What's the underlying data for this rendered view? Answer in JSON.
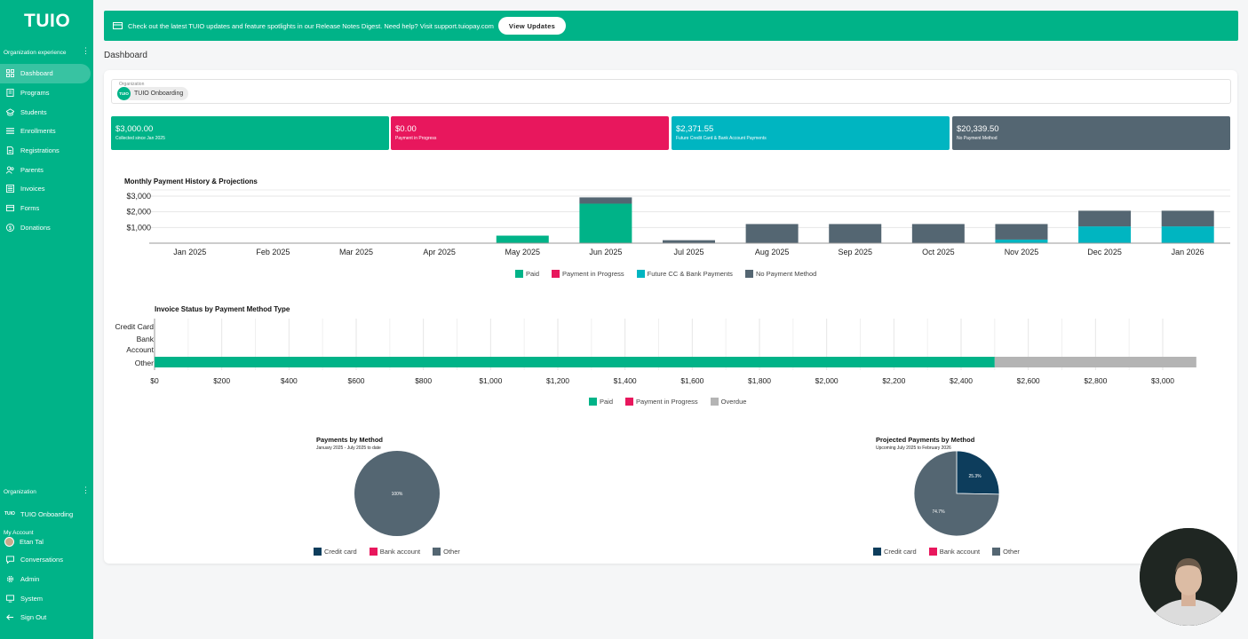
{
  "app": {
    "logo": "TUIO"
  },
  "sidebar": {
    "org_experience_label": "Organization experience",
    "items": [
      {
        "label": "Dashboard",
        "icon": "dashboard-icon",
        "active": true
      },
      {
        "label": "Programs",
        "icon": "book-icon"
      },
      {
        "label": "Students",
        "icon": "graduation-cap-icon"
      },
      {
        "label": "Enrollments",
        "icon": "list-icon"
      },
      {
        "label": "Registrations",
        "icon": "document-icon"
      },
      {
        "label": "Parents",
        "icon": "people-icon"
      },
      {
        "label": "Invoices",
        "icon": "invoice-icon"
      },
      {
        "label": "Forms",
        "icon": "form-icon"
      },
      {
        "label": "Donations",
        "icon": "donation-icon"
      }
    ],
    "organization_label": "Organization",
    "organization_mini_logo": "TUIO",
    "organization_name": "TUIO Onboarding",
    "my_account_label": "My Account",
    "user_name": "Etan Tal",
    "account_items": [
      {
        "label": "Conversations",
        "icon": "chat-icon"
      },
      {
        "label": "Admin",
        "icon": "gear-icon"
      },
      {
        "label": "System",
        "icon": "monitor-icon"
      },
      {
        "label": "Sign Out",
        "icon": "sign-out-icon"
      }
    ]
  },
  "banner": {
    "text": "Check out the latest TUIO updates and feature spotlights in our Release Notes Digest. Need help? Visit support.tuiopay.com",
    "button_label": "View Updates"
  },
  "page": {
    "title": "Dashboard"
  },
  "org_select": {
    "label": "Organization",
    "chip_logo": "TUIO",
    "value": "TUIO Onboarding"
  },
  "stats": [
    {
      "value": "$3,000.00",
      "sub": "Collected since Jan 2025",
      "color": "#00b388"
    },
    {
      "value": "$0.00",
      "sub": "Payment in Progress",
      "color": "#e8175d"
    },
    {
      "value": "$2,371.55",
      "sub": "Future Credit Card & Bank Account Payments",
      "color": "#00b5c1"
    },
    {
      "value": "$20,339.50",
      "sub": "No Payment Method",
      "color": "#546672"
    }
  ],
  "colors": {
    "paid": "#00b388",
    "in_progress": "#e8175d",
    "future": "#00b5c1",
    "no_method": "#546672",
    "overdue": "#b4b4b4",
    "credit_card": "#0d3d5c",
    "bank_account": "#e8175d",
    "other": "#546672"
  },
  "chart_data": [
    {
      "type": "bar",
      "stacked": true,
      "title": "Monthly Payment History & Projections",
      "categories": [
        "Jan 2025",
        "Feb 2025",
        "Mar 2025",
        "Apr 2025",
        "May 2025",
        "Jun 2025",
        "Jul 2025",
        "Aug 2025",
        "Sep 2025",
        "Oct 2025",
        "Nov 2025",
        "Dec 2025",
        "Jan 2026"
      ],
      "series": [
        {
          "name": "Paid",
          "values": [
            0,
            0,
            0,
            0,
            480,
            2520,
            0,
            0,
            0,
            0,
            0,
            0,
            0
          ]
        },
        {
          "name": "Payment in Progress",
          "values": [
            0,
            0,
            0,
            0,
            0,
            0,
            0,
            0,
            0,
            0,
            0,
            0,
            0
          ]
        },
        {
          "name": "Future CC & Bank Payments",
          "values": [
            0,
            0,
            0,
            0,
            0,
            0,
            0,
            0,
            0,
            0,
            230,
            1070,
            1070
          ]
        },
        {
          "name": "No Payment Method",
          "values": [
            0,
            0,
            0,
            0,
            0,
            400,
            190,
            1220,
            1220,
            1220,
            990,
            1000,
            1000
          ]
        }
      ],
      "yticks": [
        "$1,000",
        "$2,000",
        "$3,000"
      ],
      "ylim": [
        0,
        3000
      ],
      "grid": true,
      "legend": "bottom"
    },
    {
      "type": "bar",
      "orientation": "horizontal",
      "stacked": true,
      "title": "Invoice Status by Payment Method Type",
      "categories": [
        "Credit Card",
        "Bank Account",
        "Other"
      ],
      "series": [
        {
          "name": "Paid",
          "values": [
            0,
            0,
            2500
          ]
        },
        {
          "name": "Payment in Progress",
          "values": [
            0,
            0,
            0
          ]
        },
        {
          "name": "Overdue",
          "values": [
            0,
            0,
            600
          ]
        }
      ],
      "xticks": [
        "$0",
        "$200",
        "$400",
        "$600",
        "$800",
        "$1,000",
        "$1,200",
        "$1,400",
        "$1,600",
        "$1,800",
        "$2,000",
        "$2,200",
        "$2,400",
        "$2,600",
        "$2,800",
        "$3,000"
      ],
      "xlim": [
        0,
        3100
      ],
      "grid": true,
      "legend": "bottom"
    },
    {
      "type": "pie",
      "title": "Payments by Method",
      "subtitle": "January 2025 - July 2025 to date",
      "labels": [
        "Credit card",
        "Bank account",
        "Other"
      ],
      "values": [
        0,
        0,
        100
      ],
      "slice_labels": [
        "",
        "",
        "100%"
      ],
      "legend": "bottom"
    },
    {
      "type": "pie",
      "title": "Projected Payments by Method",
      "subtitle": "Upcoming July 2025 to February 2026",
      "labels": [
        "Credit card",
        "Bank account",
        "Other"
      ],
      "values": [
        25.3,
        0,
        74.7
      ],
      "slice_labels": [
        "25.3%",
        "",
        "74.7%"
      ],
      "legend": "bottom"
    }
  ]
}
